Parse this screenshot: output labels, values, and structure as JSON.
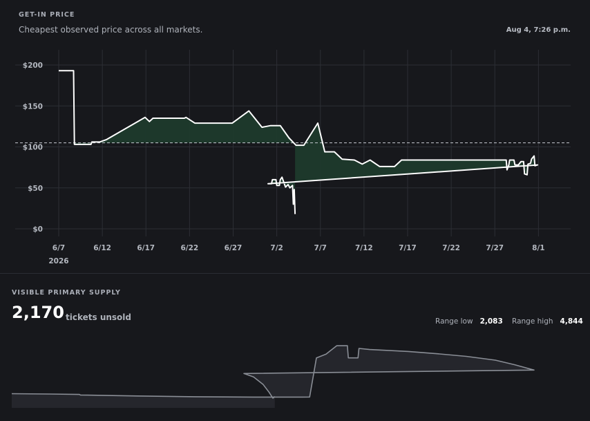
{
  "header": {
    "kicker": "GET-IN PRICE",
    "subtitle": "Cheapest observed price across all markets.",
    "timestamp": "Aug 4, 7:26 p.m."
  },
  "chart_data": [
    {
      "type": "line",
      "title": "GET-IN PRICE",
      "subtitle": "Cheapest observed price across all markets.",
      "x_tick_labels": [
        "6/7",
        "6/12",
        "6/17",
        "6/22",
        "6/27",
        "7/2",
        "7/7",
        "7/12",
        "7/17",
        "7/22",
        "7/27",
        "8/1"
      ],
      "x_year_label": "2026",
      "y_tick_labels": [
        "$200",
        "$150",
        "$100",
        "$50",
        "$0"
      ],
      "ylim": [
        0,
        200
      ],
      "reference_line": 105,
      "grid": true,
      "colors": {
        "line": "#ffffff",
        "fill": "#1e3a2c",
        "reference": "#c8ccd3"
      },
      "series": [
        {
          "points": [
            [
              "2026-06-07",
              193
            ],
            [
              "2026-06-08.7",
              193
            ],
            [
              "2026-06-08.8",
              103
            ],
            [
              "2026-06-10.7",
              103
            ],
            [
              "2026-06-10.8",
              106
            ],
            [
              "2026-06-11.7",
              106
            ],
            [
              "2026-06-12.5",
              109
            ],
            [
              "2026-06-16.9",
              136
            ],
            [
              "2026-06-17.4",
              131
            ],
            [
              "2026-06-17.8",
              135
            ],
            [
              "2026-06-21.4",
              135
            ],
            [
              "2026-06-21.6",
              136
            ],
            [
              "2026-06-22.6",
              129
            ],
            [
              "2026-06-26.9",
              129
            ],
            [
              "2026-06-28.8",
              144
            ],
            [
              "2026-06-30.3",
              124
            ],
            [
              "2026-07-01.3",
              126
            ],
            [
              "2026-07-02.4",
              126
            ],
            [
              "2026-07-03.4",
              111
            ],
            [
              "2026-07-04.2",
              102
            ],
            [
              "2026-07-05.1",
              102
            ],
            [
              "2026-07-06.7",
              129
            ],
            [
              "2026-07-07.5",
              94
            ],
            [
              "2026-07-08.6",
              94
            ],
            [
              "2026-07-09.5",
              85
            ],
            [
              "2026-07-10.9",
              84
            ],
            [
              "2026-07-11.8",
              79
            ],
            [
              "2026-07-12.7",
              84
            ],
            [
              "2026-07-13.8",
              76
            ],
            [
              "2026-07-15.5",
              76
            ],
            [
              "2026-07-16.3",
              84
            ],
            [
              "2026-07-28.3",
              84
            ],
            [
              "2026-07-28.4",
              72
            ],
            [
              "2026-07-28.6",
              78
            ],
            [
              "2026-07-28.7",
              84
            ],
            [
              "2026-07-29.2",
              84
            ],
            [
              "2026-07-29.3",
              78
            ],
            [
              "2026-07-29.7",
              78
            ],
            [
              "2026-07-30.0",
              82
            ],
            [
              "2026-07-30.3",
              82
            ],
            [
              "2026-07-30.4",
              67
            ],
            [
              "2026-07-30.7",
              66
            ],
            [
              "2026-07-30.8",
              79
            ],
            [
              "2026-07-31.1",
              80
            ],
            [
              "2026-07-31.2",
              85
            ],
            [
              "2026-07-31.5",
              89
            ],
            [
              "2026-07-31.6",
              77
            ],
            [
              "2026-07-31.9",
              78
            ],
            [
              "2026-08-01.0",
              55
            ],
            [
              "2026-08-01.4",
              55
            ],
            [
              "2026-08-01.5",
              60
            ],
            [
              "2026-08-01.9",
              60
            ],
            [
              "2026-08-02.0",
              53
            ],
            [
              "2026-08-02.3",
              53
            ],
            [
              "2026-08-02.4",
              60
            ],
            [
              "2026-08-02.6",
              63
            ],
            [
              "2026-08-02.8",
              57
            ],
            [
              "2026-08-03.0",
              51
            ],
            [
              "2026-08-03.3",
              54
            ],
            [
              "2026-08-03.5",
              50
            ],
            [
              "2026-08-03.8",
              53
            ],
            [
              "2026-08-03.9",
              30
            ],
            [
              "2026-08-04.0",
              48
            ],
            [
              "2026-08-04.1",
              18
            ]
          ]
        }
      ]
    },
    {
      "type": "area",
      "title": "VISIBLE PRIMARY SUPPLY",
      "ylim": [
        2083,
        4844
      ],
      "grid": false,
      "colors": {
        "line": "#8a8e96",
        "fill": "#25262c"
      },
      "series": [
        {
          "points": [
            [
              "2026-06-07",
              2320
            ],
            [
              "2026-06-11",
              2300
            ],
            [
              "2026-06-14",
              2280
            ],
            [
              "2026-06-14.1",
              2250
            ],
            [
              "2026-06-20",
              2200
            ],
            [
              "2026-06-26",
              2160
            ],
            [
              "2026-07-02",
              2140
            ],
            [
              "2026-07-07",
              2140
            ],
            [
              "2026-07-07.8",
              2145
            ],
            [
              "2026-07-08.5",
              4200
            ],
            [
              "2026-07-09.5",
              4400
            ],
            [
              "2026-07-10.6",
              4840
            ],
            [
              "2026-07-11.7",
              4844
            ],
            [
              "2026-07-11.8",
              4200
            ],
            [
              "2026-07-12.8",
              4200
            ],
            [
              "2026-07-12.9",
              4700
            ],
            [
              "2026-07-14.0",
              4640
            ],
            [
              "2026-07-18",
              4540
            ],
            [
              "2026-07-21",
              4420
            ],
            [
              "2026-07-24",
              4280
            ],
            [
              "2026-07-27",
              4080
            ],
            [
              "2026-07-29",
              3840
            ],
            [
              "2026-07-31",
              3560
            ],
            [
              "2026-08-01",
              3380
            ],
            [
              "2026-08-02",
              3200
            ],
            [
              "2026-08-03",
              2800
            ],
            [
              "2026-08-03.6",
              2400
            ],
            [
              "2026-08-04.0",
              2083
            ],
            [
              "2026-08-04.2",
              2170
            ]
          ]
        }
      ]
    }
  ],
  "supply": {
    "kicker": "VISIBLE PRIMARY SUPPLY",
    "count": "2,170",
    "count_label": "tickets unsold",
    "range_low_label": "Range low",
    "range_low_value": "2,083",
    "range_high_label": "Range high",
    "range_high_value": "4,844"
  }
}
